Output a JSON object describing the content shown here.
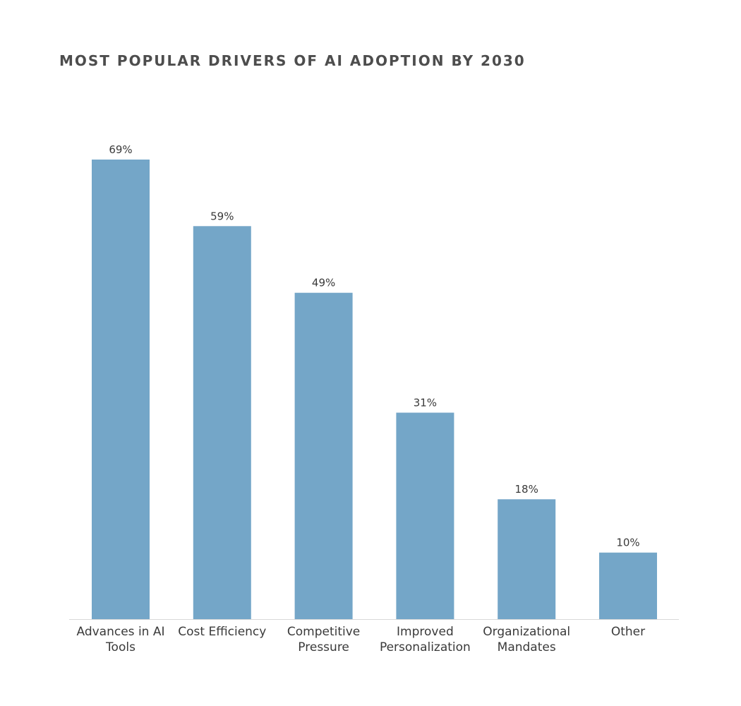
{
  "chart_data": {
    "type": "bar",
    "title": "MOST POPULAR DRIVERS OF AI ADOPTION BY 2030",
    "categories": [
      [
        "Advances in AI",
        "Tools"
      ],
      [
        "Cost Efficiency"
      ],
      [
        "Competitive",
        "Pressure"
      ],
      [
        "Improved",
        "Personalization"
      ],
      [
        "Organizational",
        "Mandates"
      ],
      [
        "Other"
      ]
    ],
    "values": [
      69,
      59,
      49,
      31,
      18,
      10
    ],
    "value_labels": [
      "69%",
      "59%",
      "49%",
      "31%",
      "18%",
      "10%"
    ],
    "unit": "%",
    "ylim": [
      0,
      69
    ],
    "grid": false,
    "legend": "none",
    "bar_color": "#74a6c8",
    "text_color": "#3a3a3a",
    "title_color": "#4d4d4d",
    "baseline_color": "#d9d9d9"
  }
}
